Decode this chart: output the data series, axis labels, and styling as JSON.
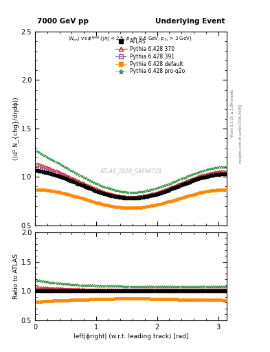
{
  "title_left": "7000 GeV pp",
  "title_right": "Underlying Event",
  "ylabel_main": "(⟨d² N_{chg}/dηdϕ⟩)",
  "ylabel_ratio": "Ratio to ATLAS",
  "xlabel": "left|ϕright| (w.r.t. leading track) [rad]",
  "watermark": "ATLAS_2010_S8894728",
  "rivet_text": "Rivet 3.1.10, ≥ 2.8M events",
  "mcplots_text": "mcplots.cern.ch [arXiv:1306.3436]",
  "xlim": [
    0,
    3.14159
  ],
  "ylim_main": [
    0.5,
    2.5
  ],
  "ylim_ratio": [
    0.5,
    2.0
  ],
  "yticks_main": [
    0.5,
    1.0,
    1.5,
    2.0,
    2.5
  ],
  "yticks_ratio": [
    0.5,
    1.0,
    1.5,
    2.0
  ],
  "xticks": [
    0,
    1,
    2,
    3
  ],
  "legend_labels": [
    "ATLAS",
    "Pythia 6.428 370",
    "Pythia 6.428 391",
    "Pythia 6.428 default",
    "Pythia 6.428 pro-q2o"
  ],
  "colors": [
    "#000000",
    "#cc2222",
    "#884488",
    "#ff8800",
    "#228833"
  ],
  "subtitle_parts": [
    "<N_{ch}> vs ϕ^{lead} (|η| < 2.5, p_{T} > 0.5 GeV, p_{T_1} > 3 GeV)"
  ]
}
